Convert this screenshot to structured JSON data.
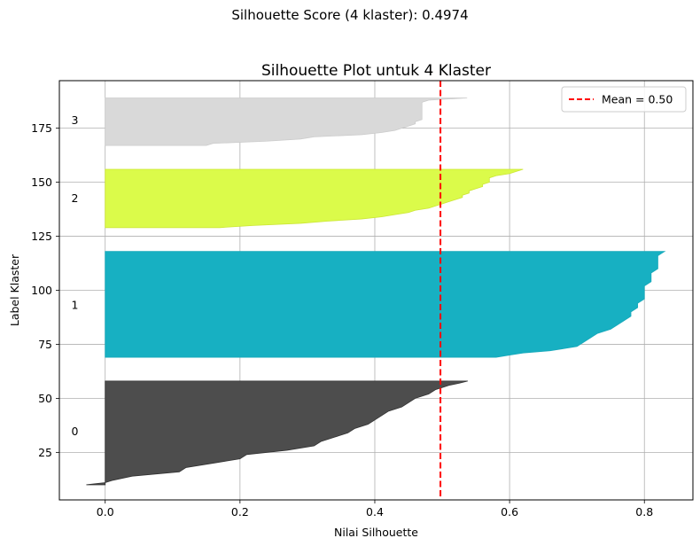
{
  "figure": {
    "suptitle": "Silhouette Score (4 klaster): 0.4974"
  },
  "chart_data": {
    "type": "area",
    "title": "Silhouette Plot untuk 4 Klaster",
    "xlabel": "Nilai Silhouette",
    "ylabel": "Label Klaster",
    "xlim": [
      -0.068,
      0.872
    ],
    "ylim": [
      3,
      197
    ],
    "xticks": [
      0.0,
      0.2,
      0.4,
      0.6,
      0.8
    ],
    "xtick_labels": [
      "0.0",
      "0.2",
      "0.4",
      "0.6",
      "0.8"
    ],
    "yticks": [
      25,
      50,
      75,
      100,
      125,
      150,
      175
    ],
    "ytick_labels": [
      "25",
      "50",
      "75",
      "100",
      "125",
      "150",
      "175"
    ],
    "grid": true,
    "legend": {
      "placement": "top-right",
      "entries": [
        {
          "label": "Mean = 0.50",
          "color": "#ff0000",
          "style": "dashed"
        }
      ]
    },
    "mean_line": {
      "x": 0.4974,
      "color": "#ff0000"
    },
    "clusters": [
      {
        "label": "0",
        "color": "#4d4d4d",
        "edge": "#333333",
        "label_y": 34.5,
        "y_start": 10,
        "y_end": 58,
        "profile": [
          [
            10,
            -0.028
          ],
          [
            11,
            0.0
          ],
          [
            12,
            0.01
          ],
          [
            14,
            0.04
          ],
          [
            16,
            0.11
          ],
          [
            18,
            0.12
          ],
          [
            20,
            0.16
          ],
          [
            22,
            0.2
          ],
          [
            24,
            0.21
          ],
          [
            26,
            0.27
          ],
          [
            28,
            0.31
          ],
          [
            30,
            0.32
          ],
          [
            32,
            0.34
          ],
          [
            34,
            0.36
          ],
          [
            36,
            0.37
          ],
          [
            38,
            0.39
          ],
          [
            40,
            0.4
          ],
          [
            42,
            0.41
          ],
          [
            44,
            0.42
          ],
          [
            46,
            0.44
          ],
          [
            48,
            0.45
          ],
          [
            50,
            0.46
          ],
          [
            52,
            0.48
          ],
          [
            54,
            0.49
          ],
          [
            55,
            0.5
          ],
          [
            56,
            0.51
          ],
          [
            57,
            0.525
          ],
          [
            58,
            0.538
          ]
        ]
      },
      {
        "label": "1",
        "color": "#17b0c2",
        "edge": "#17a8ba",
        "label_y": 93,
        "y_start": 69,
        "y_end": 118,
        "profile": [
          [
            69,
            0.58
          ],
          [
            70,
            0.6
          ],
          [
            71,
            0.62
          ],
          [
            72,
            0.66
          ],
          [
            74,
            0.7
          ],
          [
            76,
            0.71
          ],
          [
            78,
            0.72
          ],
          [
            80,
            0.73
          ],
          [
            82,
            0.75
          ],
          [
            84,
            0.76
          ],
          [
            86,
            0.77
          ],
          [
            88,
            0.78
          ],
          [
            90,
            0.78
          ],
          [
            92,
            0.79
          ],
          [
            94,
            0.79
          ],
          [
            96,
            0.8
          ],
          [
            98,
            0.8
          ],
          [
            100,
            0.8
          ],
          [
            102,
            0.8
          ],
          [
            104,
            0.81
          ],
          [
            106,
            0.81
          ],
          [
            108,
            0.81
          ],
          [
            110,
            0.82
          ],
          [
            112,
            0.82
          ],
          [
            114,
            0.82
          ],
          [
            116,
            0.82
          ],
          [
            117,
            0.825
          ],
          [
            118,
            0.83
          ]
        ]
      },
      {
        "label": "2",
        "color": "#dbfb4a",
        "edge": "#cce636",
        "label_y": 142.5,
        "y_start": 129,
        "y_end": 156,
        "profile": [
          [
            129,
            0.17
          ],
          [
            130,
            0.22
          ],
          [
            131,
            0.29
          ],
          [
            132,
            0.33
          ],
          [
            133,
            0.38
          ],
          [
            134,
            0.41
          ],
          [
            135,
            0.43
          ],
          [
            136,
            0.45
          ],
          [
            137,
            0.46
          ],
          [
            138,
            0.48
          ],
          [
            139,
            0.49
          ],
          [
            140,
            0.5
          ],
          [
            141,
            0.51
          ],
          [
            142,
            0.52
          ],
          [
            143,
            0.53
          ],
          [
            144,
            0.53
          ],
          [
            145,
            0.54
          ],
          [
            146,
            0.54
          ],
          [
            147,
            0.55
          ],
          [
            148,
            0.56
          ],
          [
            149,
            0.56
          ],
          [
            150,
            0.57
          ],
          [
            151,
            0.57
          ],
          [
            152,
            0.57
          ],
          [
            153,
            0.58
          ],
          [
            154,
            0.6
          ],
          [
            155,
            0.61
          ],
          [
            156,
            0.62
          ]
        ]
      },
      {
        "label": "3",
        "color": "#d9d9d9",
        "edge": "#cccccc",
        "label_y": 178.5,
        "y_start": 167,
        "y_end": 189,
        "profile": [
          [
            167,
            0.15
          ],
          [
            168,
            0.16
          ],
          [
            169,
            0.24
          ],
          [
            170,
            0.29
          ],
          [
            171,
            0.31
          ],
          [
            172,
            0.38
          ],
          [
            173,
            0.41
          ],
          [
            174,
            0.43
          ],
          [
            175,
            0.44
          ],
          [
            176,
            0.45
          ],
          [
            177,
            0.46
          ],
          [
            178,
            0.46
          ],
          [
            179,
            0.47
          ],
          [
            180,
            0.47
          ],
          [
            181,
            0.47
          ],
          [
            182,
            0.47
          ],
          [
            183,
            0.47
          ],
          [
            184,
            0.47
          ],
          [
            185,
            0.47
          ],
          [
            186,
            0.47
          ],
          [
            187,
            0.47
          ],
          [
            188,
            0.48
          ],
          [
            189,
            0.537
          ]
        ]
      }
    ]
  }
}
